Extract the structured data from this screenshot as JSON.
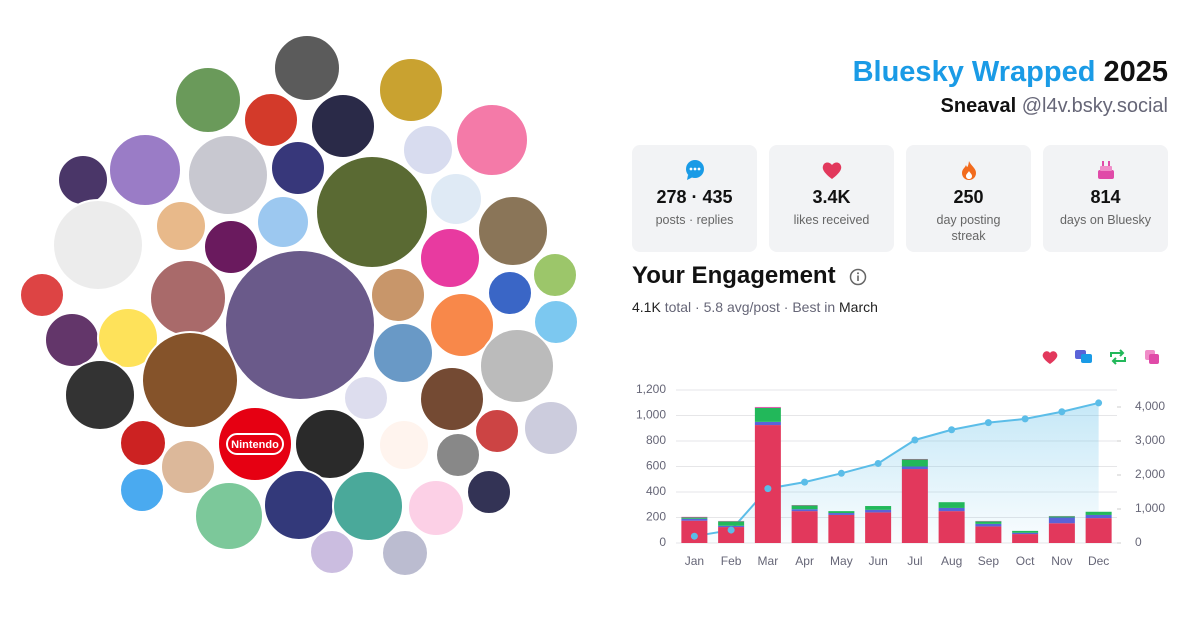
{
  "header": {
    "title": "Bluesky Wrapped",
    "year": "2025",
    "name": "Sneaval",
    "handle": "@l4v.bsky.social"
  },
  "collage_text": "Nintendo",
  "stats": [
    {
      "value": "278 · 435",
      "label": "posts · replies"
    },
    {
      "value": "3.4K",
      "label": "likes received"
    },
    {
      "value": "250",
      "label": "day posting streak"
    },
    {
      "value": "814",
      "label": "days on Bluesky"
    }
  ],
  "engagement": {
    "title": "Your Engagement",
    "total": "4.1K",
    "middle": " total · 5.8 avg/post · Best in ",
    "best": "March"
  },
  "chart_data": {
    "type": "bar",
    "stacked": true,
    "categories": [
      "Jan",
      "Feb",
      "Mar",
      "Apr",
      "May",
      "Jun",
      "Jul",
      "Aug",
      "Sep",
      "Oct",
      "Nov",
      "Dec"
    ],
    "series": [
      {
        "color": "#e2385c",
        "values": [
          175,
          125,
          925,
          250,
          220,
          240,
          580,
          250,
          130,
          70,
          155,
          195
        ]
      },
      {
        "color": "#5a63d8",
        "values": [
          15,
          10,
          25,
          15,
          15,
          20,
          20,
          25,
          20,
          10,
          45,
          25
        ]
      },
      {
        "color": "#22b85a",
        "values": [
          10,
          35,
          110,
          30,
          15,
          30,
          55,
          45,
          20,
          15,
          10,
          25
        ]
      },
      {
        "color": "#e04aa8",
        "values": [
          5,
          3,
          7,
          3,
          0,
          0,
          4,
          0,
          3,
          0,
          2,
          0
        ]
      },
      {
        "type": "line",
        "axis": "y2",
        "color": "#5bbde8",
        "values": [
          200,
          380,
          1600,
          1790,
          2050,
          2340,
          3030,
          3330,
          3540,
          3650,
          3860,
          4120
        ]
      }
    ],
    "ylim": [
      0,
      1200
    ],
    "yticks": [
      0,
      200,
      400,
      600,
      800,
      {
        "value": 1000,
        "label": "1,000"
      },
      {
        "value": 1200,
        "label": "1,200"
      }
    ],
    "y2lim": [
      0,
      4500
    ],
    "y2ticks": [
      0,
      {
        "value": 1000,
        "label": "1,000"
      },
      {
        "value": 2000,
        "label": "2,000"
      },
      {
        "value": 3000,
        "label": "3,000"
      },
      {
        "value": 4000,
        "label": "4,000"
      }
    ],
    "grid": true
  }
}
